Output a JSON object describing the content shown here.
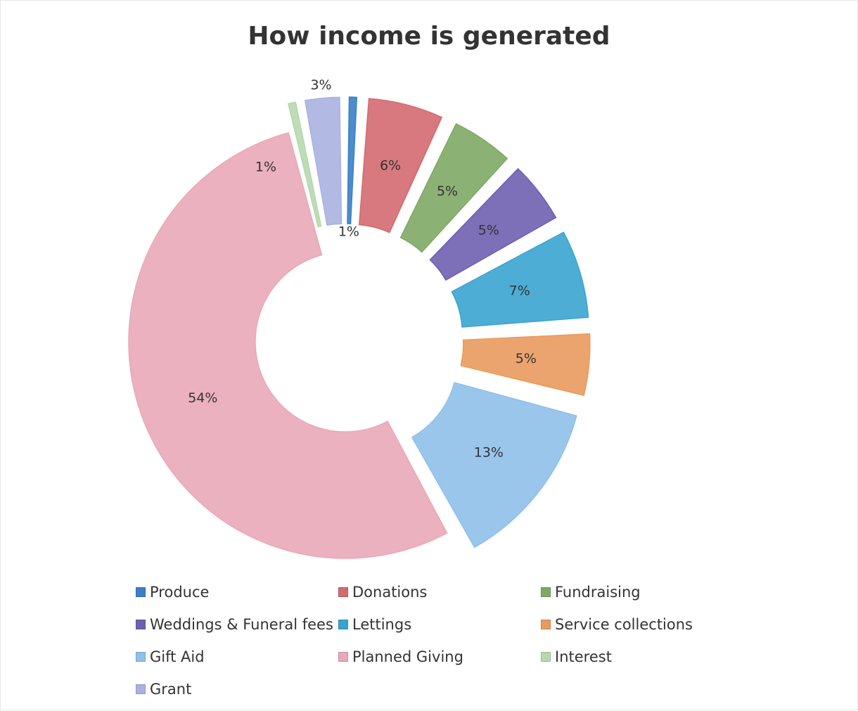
{
  "chart_data": {
    "type": "pie",
    "donut": true,
    "exploded": true,
    "title": "How income is generated",
    "legend_position": "bottom",
    "slices": [
      {
        "name": "Produce",
        "value": 1,
        "label": "1%",
        "color": "#3a7fc8"
      },
      {
        "name": "Donations",
        "value": 6,
        "label": "6%",
        "color": "#d36a70"
      },
      {
        "name": "Fundraising",
        "value": 5,
        "label": "5%",
        "color": "#7fa866"
      },
      {
        "name": "Weddings & Funeral fees",
        "value": 5,
        "label": "5%",
        "color": "#6f5fb0"
      },
      {
        "name": "Lettings",
        "value": 7,
        "label": "7%",
        "color": "#3aa4d0"
      },
      {
        "name": "Service collections",
        "value": 5,
        "label": "5%",
        "color": "#ea9a5e"
      },
      {
        "name": "Gift Aid",
        "value": 13,
        "label": "13%",
        "color": "#8fc0ea"
      },
      {
        "name": "Planned Giving",
        "value": 54,
        "label": "54%",
        "color": "#e9a9b8"
      },
      {
        "name": "Interest",
        "value": 1,
        "label": "1%",
        "color": "#b7d8ad"
      },
      {
        "name": "Grant",
        "value": 3,
        "label": "3%",
        "color": "#aab2e0"
      }
    ]
  }
}
